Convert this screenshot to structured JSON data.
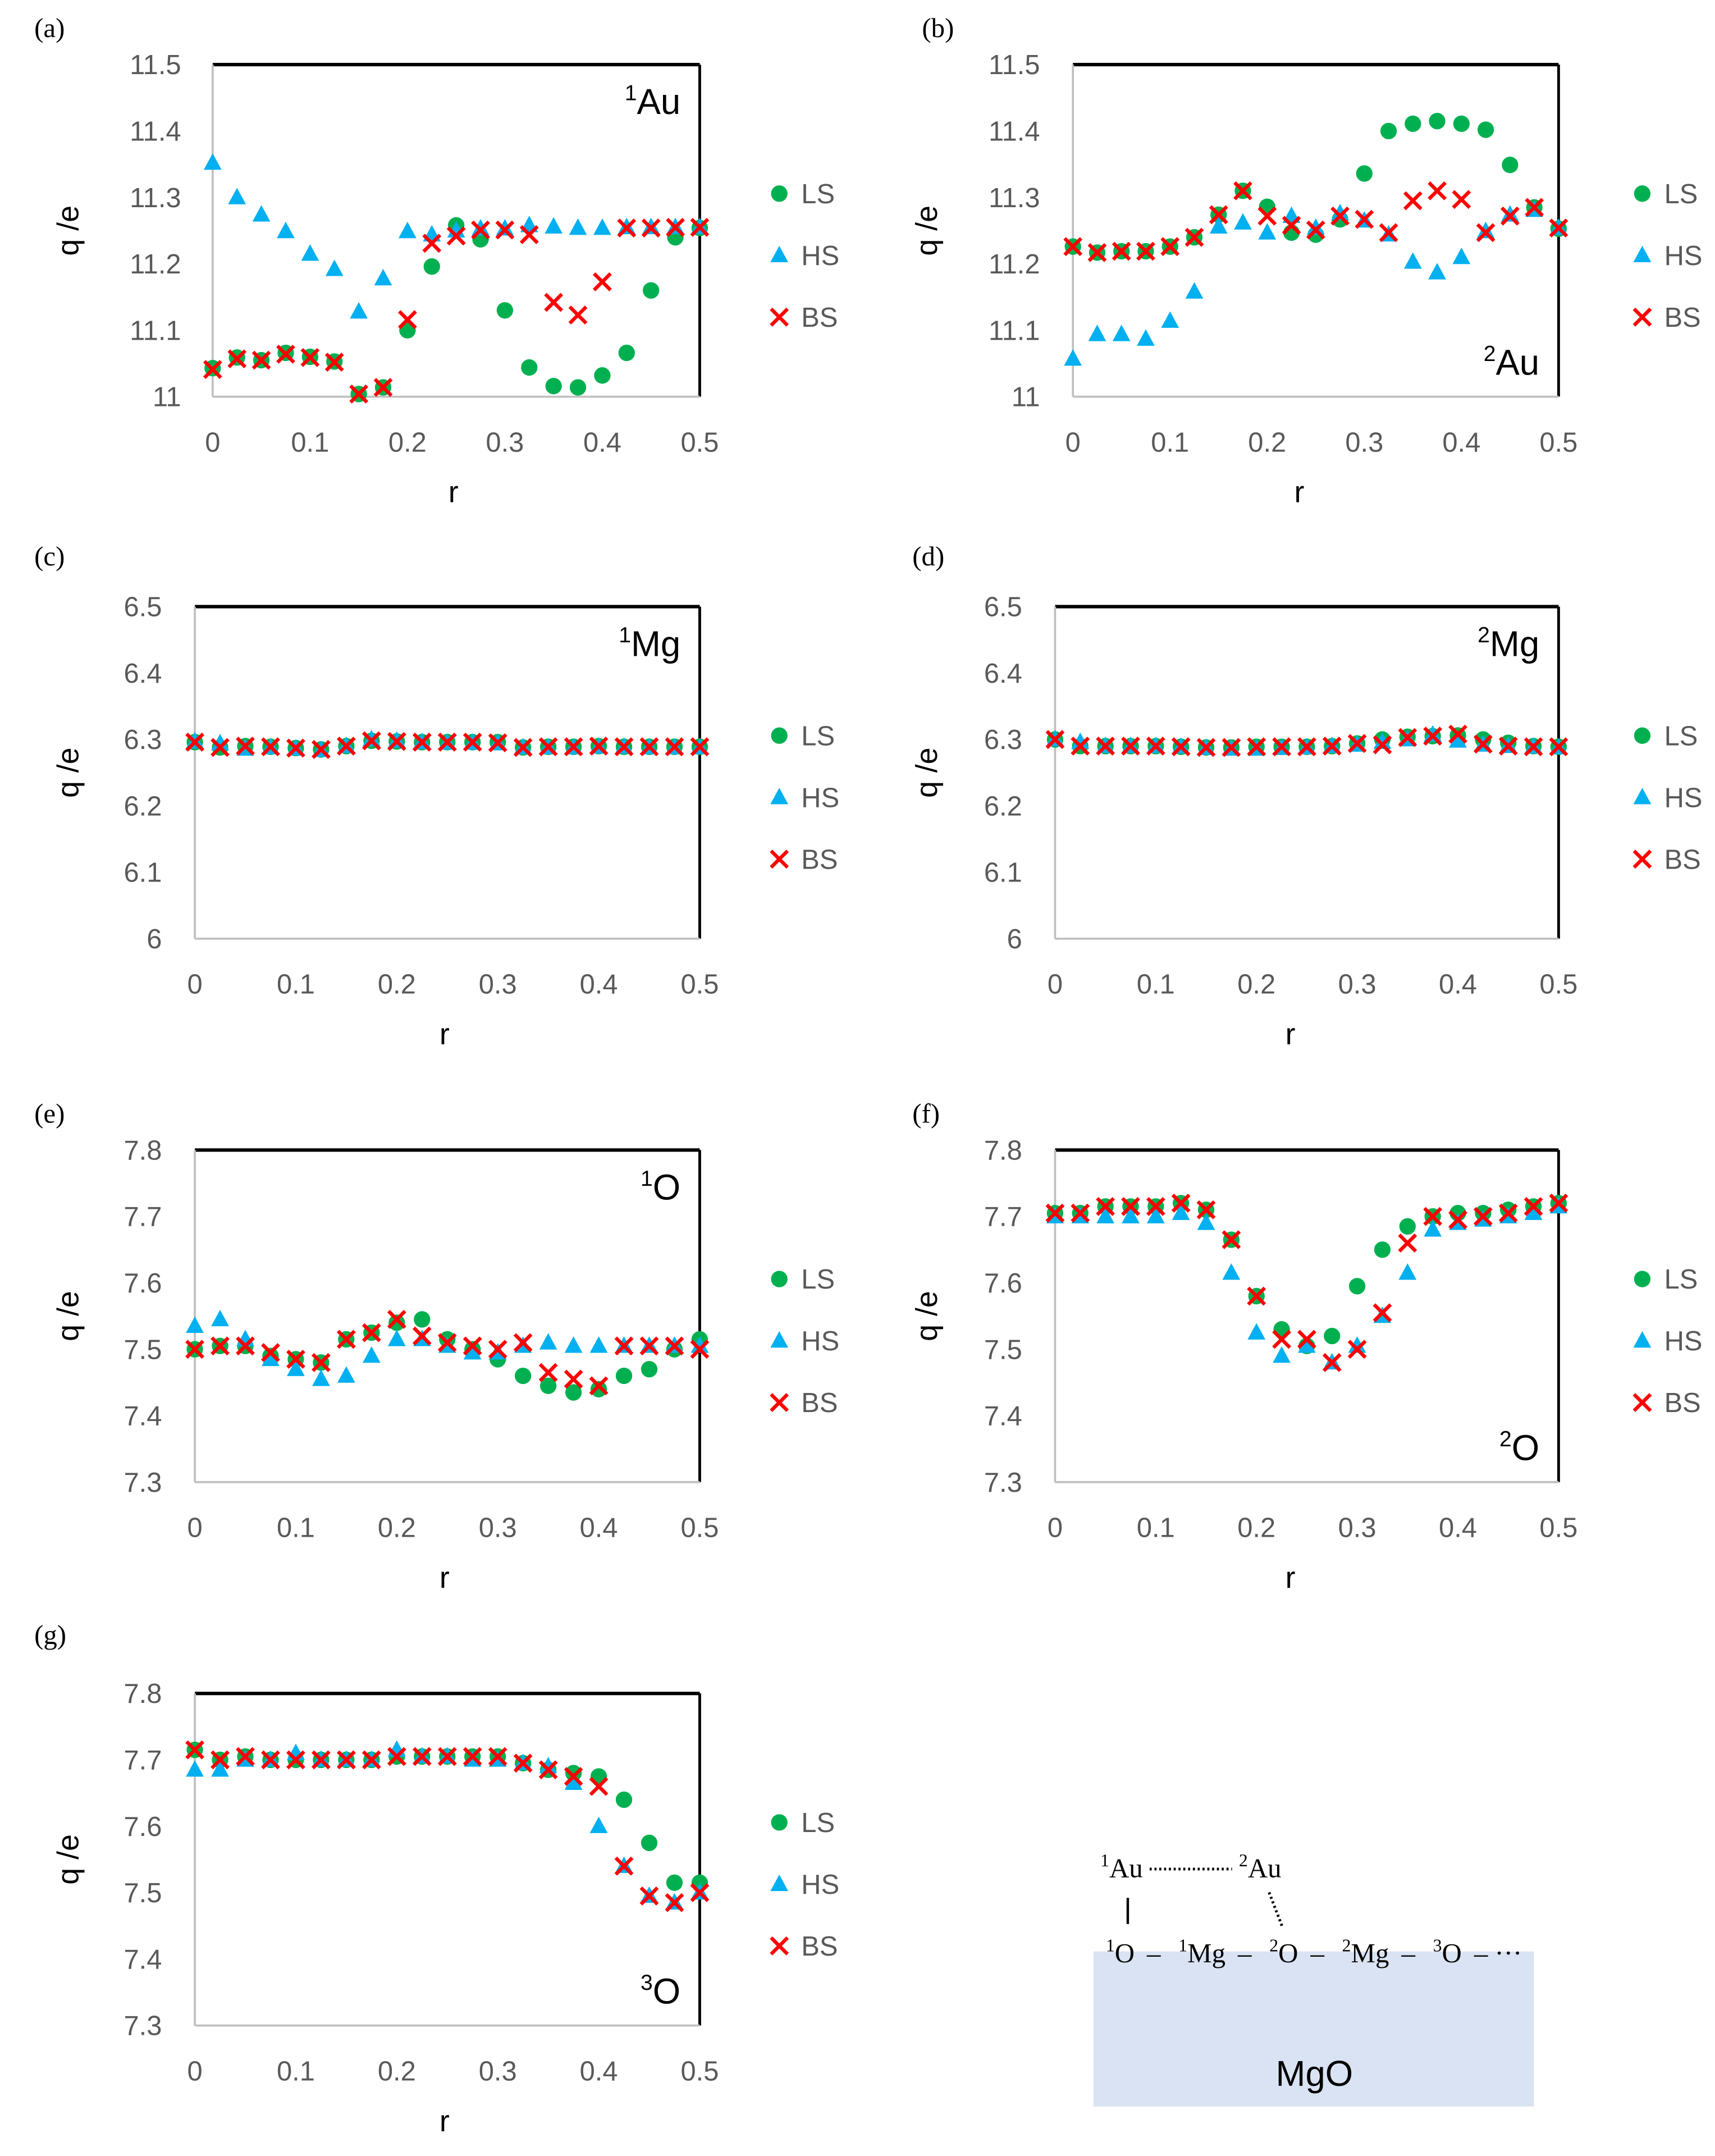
{
  "series_styles": {
    "LS": {
      "color": "#00b050",
      "marker": "circle"
    },
    "HS": {
      "color": "#00b0f0",
      "marker": "triangle"
    },
    "BS": {
      "color": "#ff0000",
      "marker": "cross"
    }
  },
  "chart_data": [
    {
      "panel": "(a)",
      "type": "scatter",
      "annotation": {
        "sup": "1",
        "el": "Au",
        "placement": "top-right"
      },
      "xlabel": "r",
      "ylabel": "q /e",
      "xlim": [
        0,
        0.5
      ],
      "ylim": [
        11,
        11.5
      ],
      "xticks": [
        "0",
        "0.1",
        "0.2",
        "0.3",
        "0.4",
        "0.5"
      ],
      "yticks": [
        "11",
        "11.1",
        "11.2",
        "11.3",
        "11.4",
        "11.5"
      ],
      "legend": [
        "LS",
        "HS",
        "BS"
      ],
      "legend_placement": "right",
      "x": [
        0,
        0.025,
        0.05,
        0.075,
        0.1,
        0.125,
        0.15,
        0.175,
        0.2,
        0.225,
        0.25,
        0.275,
        0.3,
        0.325,
        0.35,
        0.375,
        0.4,
        0.425,
        0.45,
        0.475,
        0.5
      ],
      "series": [
        {
          "name": "LS",
          "values": [
            11.043,
            11.059,
            11.055,
            11.066,
            11.06,
            11.053,
            11.004,
            11.014,
            11.1,
            11.196,
            11.258,
            11.237,
            11.13,
            11.044,
            11.016,
            11.014,
            11.032,
            11.066,
            11.16,
            11.24,
            11.254
          ]
        },
        {
          "name": "HS",
          "values": [
            11.352,
            11.3,
            11.274,
            11.249,
            11.215,
            11.192,
            11.128,
            11.178,
            11.249,
            11.244,
            11.25,
            11.253,
            11.253,
            11.258,
            11.256,
            11.254,
            11.254,
            11.255,
            11.255,
            11.255,
            11.255
          ]
        },
        {
          "name": "BS",
          "values": [
            11.041,
            11.057,
            11.055,
            11.064,
            11.059,
            11.052,
            11.004,
            11.014,
            11.116,
            11.231,
            11.242,
            11.251,
            11.251,
            11.244,
            11.142,
            11.123,
            11.173,
            11.254,
            11.254,
            11.255,
            11.255
          ]
        }
      ]
    },
    {
      "panel": "(b)",
      "type": "scatter",
      "annotation": {
        "sup": "2",
        "el": "Au",
        "placement": "bottom-right"
      },
      "xlabel": "r",
      "ylabel": "q /e",
      "xlim": [
        0,
        0.5
      ],
      "ylim": [
        11,
        11.5
      ],
      "xticks": [
        "0",
        "0.1",
        "0.2",
        "0.3",
        "0.4",
        "0.5"
      ],
      "yticks": [
        "11",
        "11.1",
        "11.2",
        "11.3",
        "11.4",
        "11.5"
      ],
      "legend": [
        "LS",
        "HS",
        "BS"
      ],
      "legend_placement": "right",
      "x": [
        0,
        0.025,
        0.05,
        0.075,
        0.1,
        0.125,
        0.15,
        0.175,
        0.2,
        0.225,
        0.25,
        0.275,
        0.3,
        0.325,
        0.35,
        0.375,
        0.4,
        0.425,
        0.45,
        0.475,
        0.5
      ],
      "series": [
        {
          "name": "LS",
          "values": [
            11.226,
            11.217,
            11.219,
            11.219,
            11.226,
            11.24,
            11.274,
            11.31,
            11.286,
            11.247,
            11.244,
            11.267,
            11.336,
            11.4,
            11.411,
            11.415,
            11.411,
            11.402,
            11.349,
            11.285,
            11.253
          ]
        },
        {
          "name": "HS",
          "values": [
            11.057,
            11.094,
            11.094,
            11.087,
            11.114,
            11.158,
            11.256,
            11.262,
            11.247,
            11.272,
            11.254,
            11.276,
            11.265,
            11.244,
            11.203,
            11.187,
            11.21,
            11.249,
            11.274,
            11.281,
            11.254
          ]
        },
        {
          "name": "BS",
          "values": [
            11.226,
            11.217,
            11.219,
            11.219,
            11.226,
            11.24,
            11.274,
            11.31,
            11.272,
            11.258,
            11.251,
            11.272,
            11.267,
            11.247,
            11.295,
            11.31,
            11.297,
            11.247,
            11.272,
            11.285,
            11.254
          ]
        }
      ]
    },
    {
      "panel": "(c)",
      "type": "scatter",
      "annotation": {
        "sup": "1",
        "el": "Mg",
        "placement": "top-right"
      },
      "xlabel": "r",
      "ylabel": "q /e",
      "xlim": [
        0,
        0.5
      ],
      "ylim": [
        6,
        6.5
      ],
      "xticks": [
        "0",
        "0.1",
        "0.2",
        "0.3",
        "0.4",
        "0.5"
      ],
      "yticks": [
        "6",
        "6.1",
        "6.2",
        "6.3",
        "6.4",
        "6.5"
      ],
      "legend": [
        "LS",
        "HS",
        "BS"
      ],
      "legend_placement": "right",
      "x": [
        0,
        0.025,
        0.05,
        0.075,
        0.1,
        0.125,
        0.15,
        0.175,
        0.2,
        0.225,
        0.25,
        0.275,
        0.3,
        0.325,
        0.35,
        0.375,
        0.4,
        0.425,
        0.45,
        0.475,
        0.5
      ],
      "series": [
        {
          "name": "LS",
          "values": [
            6.296,
            6.288,
            6.29,
            6.289,
            6.287,
            6.285,
            6.29,
            6.298,
            6.297,
            6.296,
            6.296,
            6.296,
            6.296,
            6.288,
            6.289,
            6.289,
            6.29,
            6.289,
            6.289,
            6.289,
            6.289
          ]
        },
        {
          "name": "HS",
          "values": [
            6.297,
            6.294,
            6.286,
            6.288,
            6.286,
            6.284,
            6.29,
            6.3,
            6.298,
            6.296,
            6.295,
            6.295,
            6.294,
            6.288,
            6.288,
            6.288,
            6.289,
            6.289,
            6.288,
            6.288,
            6.288
          ]
        },
        {
          "name": "BS",
          "values": [
            6.296,
            6.288,
            6.29,
            6.289,
            6.287,
            6.285,
            6.29,
            6.298,
            6.297,
            6.296,
            6.296,
            6.296,
            6.295,
            6.288,
            6.289,
            6.289,
            6.29,
            6.289,
            6.289,
            6.289,
            6.289
          ]
        }
      ]
    },
    {
      "panel": "(d)",
      "type": "scatter",
      "annotation": {
        "sup": "2",
        "el": "Mg",
        "placement": "top-right"
      },
      "xlabel": "r",
      "ylabel": "q /e",
      "xlim": [
        0,
        0.5
      ],
      "ylim": [
        6,
        6.5
      ],
      "xticks": [
        "0",
        "0.1",
        "0.2",
        "0.3",
        "0.4",
        "0.5"
      ],
      "yticks": [
        "6",
        "6.1",
        "6.2",
        "6.3",
        "6.4",
        "6.5"
      ],
      "legend": [
        "LS",
        "HS",
        "BS"
      ],
      "legend_placement": "right",
      "x": [
        0,
        0.025,
        0.05,
        0.075,
        0.1,
        0.125,
        0.15,
        0.175,
        0.2,
        0.225,
        0.25,
        0.275,
        0.3,
        0.325,
        0.35,
        0.375,
        0.4,
        0.425,
        0.45,
        0.475,
        0.5
      ],
      "series": [
        {
          "name": "LS",
          "values": [
            6.3,
            6.29,
            6.29,
            6.29,
            6.29,
            6.289,
            6.288,
            6.288,
            6.289,
            6.289,
            6.289,
            6.29,
            6.294,
            6.3,
            6.304,
            6.305,
            6.306,
            6.3,
            6.295,
            6.29,
            6.289
          ]
        },
        {
          "name": "HS",
          "values": [
            6.3,
            6.296,
            6.29,
            6.29,
            6.29,
            6.289,
            6.287,
            6.286,
            6.286,
            6.287,
            6.288,
            6.29,
            6.292,
            6.296,
            6.3,
            6.307,
            6.298,
            6.292,
            6.29,
            6.289,
            6.288
          ]
        },
        {
          "name": "BS",
          "values": [
            6.3,
            6.29,
            6.29,
            6.29,
            6.29,
            6.289,
            6.288,
            6.288,
            6.289,
            6.289,
            6.289,
            6.29,
            6.294,
            6.292,
            6.303,
            6.305,
            6.308,
            6.293,
            6.29,
            6.289,
            6.289
          ]
        }
      ]
    },
    {
      "panel": "(e)",
      "type": "scatter",
      "annotation": {
        "sup": "1",
        "el": "O",
        "placement": "top-right"
      },
      "xlabel": "r",
      "ylabel": "q /e",
      "xlim": [
        0,
        0.5
      ],
      "ylim": [
        7.3,
        7.8
      ],
      "xticks": [
        "0",
        "0.1",
        "0.2",
        "0.3",
        "0.4",
        "0.5"
      ],
      "yticks": [
        "7.3",
        "7.4",
        "7.5",
        "7.6",
        "7.7",
        "7.8"
      ],
      "legend": [
        "LS",
        "HS",
        "BS"
      ],
      "legend_placement": "right",
      "x": [
        0,
        0.025,
        0.05,
        0.075,
        0.1,
        0.125,
        0.15,
        0.175,
        0.2,
        0.225,
        0.25,
        0.275,
        0.3,
        0.325,
        0.35,
        0.375,
        0.4,
        0.425,
        0.45,
        0.475,
        0.5
      ],
      "series": [
        {
          "name": "LS",
          "values": [
            7.5,
            7.505,
            7.505,
            7.49,
            7.485,
            7.48,
            7.515,
            7.525,
            7.54,
            7.545,
            7.515,
            7.5,
            7.485,
            7.46,
            7.445,
            7.435,
            7.44,
            7.46,
            7.47,
            7.5,
            7.515
          ]
        },
        {
          "name": "HS",
          "values": [
            7.535,
            7.545,
            7.515,
            7.485,
            7.47,
            7.455,
            7.46,
            7.49,
            7.515,
            7.515,
            7.505,
            7.495,
            7.495,
            7.505,
            7.51,
            7.505,
            7.505,
            7.505,
            7.505,
            7.505,
            7.505
          ]
        },
        {
          "name": "BS",
          "values": [
            7.5,
            7.505,
            7.505,
            7.495,
            7.485,
            7.48,
            7.515,
            7.525,
            7.545,
            7.52,
            7.51,
            7.505,
            7.5,
            7.51,
            7.465,
            7.455,
            7.445,
            7.505,
            7.505,
            7.505,
            7.5
          ]
        }
      ]
    },
    {
      "panel": "(f)",
      "type": "scatter",
      "annotation": {
        "sup": "2",
        "el": "O",
        "placement": "bottom-right"
      },
      "xlabel": "r",
      "ylabel": "q /e",
      "xlim": [
        0,
        0.5
      ],
      "ylim": [
        7.3,
        7.8
      ],
      "xticks": [
        "0",
        "0.1",
        "0.2",
        "0.3",
        "0.4",
        "0.5"
      ],
      "yticks": [
        "7.3",
        "7.4",
        "7.5",
        "7.6",
        "7.7",
        "7.8"
      ],
      "legend": [
        "LS",
        "HS",
        "BS"
      ],
      "legend_placement": "right",
      "x": [
        0,
        0.025,
        0.05,
        0.075,
        0.1,
        0.125,
        0.15,
        0.175,
        0.2,
        0.225,
        0.25,
        0.275,
        0.3,
        0.325,
        0.35,
        0.375,
        0.4,
        0.425,
        0.45,
        0.475,
        0.5
      ],
      "series": [
        {
          "name": "LS",
          "values": [
            7.705,
            7.705,
            7.715,
            7.715,
            7.715,
            7.72,
            7.71,
            7.665,
            7.58,
            7.53,
            7.505,
            7.52,
            7.595,
            7.65,
            7.685,
            7.7,
            7.705,
            7.705,
            7.71,
            7.715,
            7.72
          ]
        },
        {
          "name": "HS",
          "values": [
            7.7,
            7.7,
            7.7,
            7.7,
            7.7,
            7.705,
            7.69,
            7.615,
            7.525,
            7.49,
            7.505,
            7.48,
            7.505,
            7.55,
            7.615,
            7.68,
            7.69,
            7.695,
            7.7,
            7.705,
            7.715
          ]
        },
        {
          "name": "BS",
          "values": [
            7.705,
            7.705,
            7.715,
            7.715,
            7.715,
            7.72,
            7.71,
            7.665,
            7.58,
            7.515,
            7.515,
            7.48,
            7.5,
            7.555,
            7.66,
            7.7,
            7.695,
            7.7,
            7.705,
            7.715,
            7.72
          ]
        }
      ]
    },
    {
      "panel": "(g)",
      "type": "scatter",
      "annotation": {
        "sup": "3",
        "el": "O",
        "placement": "bottom-right"
      },
      "xlabel": "r",
      "ylabel": "q /e",
      "xlim": [
        0,
        0.5
      ],
      "ylim": [
        7.3,
        7.8
      ],
      "xticks": [
        "0",
        "0.1",
        "0.2",
        "0.3",
        "0.4",
        "0.5"
      ],
      "yticks": [
        "7.3",
        "7.4",
        "7.5",
        "7.6",
        "7.7",
        "7.8"
      ],
      "legend": [
        "LS",
        "HS",
        "BS"
      ],
      "legend_placement": "right",
      "x": [
        0,
        0.025,
        0.05,
        0.075,
        0.1,
        0.125,
        0.15,
        0.175,
        0.2,
        0.225,
        0.25,
        0.275,
        0.3,
        0.325,
        0.35,
        0.375,
        0.4,
        0.425,
        0.45,
        0.475,
        0.5
      ],
      "series": [
        {
          "name": "LS",
          "values": [
            7.715,
            7.7,
            7.705,
            7.7,
            7.7,
            7.7,
            7.7,
            7.7,
            7.705,
            7.705,
            7.705,
            7.705,
            7.705,
            7.695,
            7.685,
            7.68,
            7.675,
            7.64,
            7.575,
            7.515,
            7.515
          ]
        },
        {
          "name": "HS",
          "values": [
            7.685,
            7.685,
            7.7,
            7.7,
            7.71,
            7.7,
            7.7,
            7.7,
            7.715,
            7.705,
            7.705,
            7.7,
            7.7,
            7.695,
            7.69,
            7.665,
            7.6,
            7.54,
            7.495,
            7.485,
            7.5
          ]
        },
        {
          "name": "BS",
          "values": [
            7.715,
            7.7,
            7.705,
            7.7,
            7.7,
            7.7,
            7.7,
            7.7,
            7.705,
            7.705,
            7.705,
            7.705,
            7.705,
            7.695,
            7.685,
            7.675,
            7.66,
            7.54,
            7.495,
            7.485,
            7.5
          ]
        }
      ]
    }
  ],
  "diagram": {
    "substrate_label": "MgO",
    "substrate_color": "#dae3f3",
    "adatoms": [
      {
        "sup": "1",
        "el": "Au"
      },
      {
        "sup": "2",
        "el": "Au"
      }
    ],
    "surface_chain": [
      {
        "sup": "1",
        "el": "O"
      },
      {
        "sup": "1",
        "el": "Mg"
      },
      {
        "sup": "2",
        "el": "O"
      },
      {
        "sup": "2",
        "el": "Mg"
      },
      {
        "sup": "3",
        "el": "O"
      }
    ],
    "chain_tail": "– ···",
    "bond": "–"
  }
}
